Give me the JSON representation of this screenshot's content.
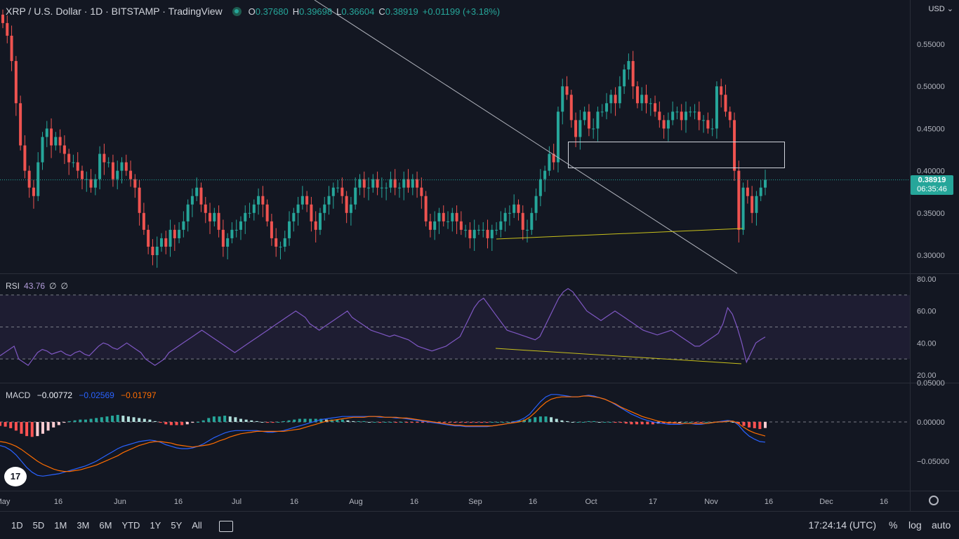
{
  "legend": {
    "symbol": "XRP / U.S. Dollar · 1D · BITSTAMP · TradingView",
    "o_label": "O",
    "o": "0.37680",
    "h_label": "H",
    "h": "0.39698",
    "l_label": "L",
    "l": "0.36604",
    "c_label": "C",
    "c": "0.38919",
    "change": "+0.01199 (+3.18%)"
  },
  "currency": "USD",
  "last_price": "0.38919",
  "countdown": "06:35:46",
  "rsi_legend": {
    "name": "RSI",
    "value": "43.76",
    "extra1": "∅",
    "extra2": "∅"
  },
  "macd_legend": {
    "name": "MACD",
    "v1": "−0.00772",
    "v2": "−0.02569",
    "v3": "−0.01797"
  },
  "ranges": [
    "1D",
    "5D",
    "1M",
    "3M",
    "6M",
    "YTD",
    "1Y",
    "5Y",
    "All"
  ],
  "time": "17:24:14 (UTC)",
  "options": {
    "percent": "%",
    "log": "log",
    "auto": "auto"
  },
  "logo_text": "17",
  "colors": {
    "bg": "#131722",
    "up": "#26a69a",
    "down": "#ef5350",
    "rsi": "#7e57c2",
    "macd": "#2962ff",
    "signal": "#ff6d00",
    "trend": "#c9c11b"
  },
  "chart_data": [
    {
      "type": "candlestick",
      "title": "XRP / U.S. Dollar · 1D · BITSTAMP",
      "y_ticks": [
        "0.55000",
        "0.50000",
        "0.45000",
        "0.40000",
        "0.35000",
        "0.30000"
      ],
      "ylim": [
        0.277,
        0.585
      ],
      "x_ticks": [
        "May",
        "16",
        "Jun",
        "16",
        "Jul",
        "16",
        "Aug",
        "16",
        "Sep",
        "16",
        "Oct",
        "17",
        "Nov",
        "16",
        "Dec",
        "16"
      ],
      "closes": [
        0.575,
        0.56,
        0.53,
        0.48,
        0.43,
        0.4,
        0.38,
        0.37,
        0.41,
        0.44,
        0.45,
        0.43,
        0.44,
        0.43,
        0.42,
        0.41,
        0.41,
        0.4,
        0.39,
        0.39,
        0.38,
        0.39,
        0.42,
        0.41,
        0.41,
        0.39,
        0.4,
        0.41,
        0.4,
        0.39,
        0.38,
        0.35,
        0.33,
        0.31,
        0.3,
        0.31,
        0.32,
        0.31,
        0.33,
        0.32,
        0.33,
        0.34,
        0.36,
        0.37,
        0.38,
        0.36,
        0.35,
        0.34,
        0.35,
        0.33,
        0.31,
        0.32,
        0.33,
        0.33,
        0.34,
        0.35,
        0.35,
        0.36,
        0.37,
        0.36,
        0.34,
        0.32,
        0.31,
        0.31,
        0.32,
        0.34,
        0.35,
        0.36,
        0.37,
        0.36,
        0.34,
        0.33,
        0.35,
        0.36,
        0.37,
        0.38,
        0.38,
        0.37,
        0.35,
        0.36,
        0.38,
        0.39,
        0.38,
        0.38,
        0.39,
        0.38,
        0.38,
        0.38,
        0.39,
        0.38,
        0.38,
        0.39,
        0.38,
        0.39,
        0.38,
        0.37,
        0.34,
        0.33,
        0.34,
        0.35,
        0.34,
        0.34,
        0.35,
        0.34,
        0.33,
        0.33,
        0.32,
        0.33,
        0.33,
        0.33,
        0.32,
        0.33,
        0.33,
        0.34,
        0.35,
        0.35,
        0.36,
        0.35,
        0.33,
        0.33,
        0.35,
        0.37,
        0.39,
        0.4,
        0.42,
        0.41,
        0.47,
        0.5,
        0.49,
        0.46,
        0.44,
        0.46,
        0.47,
        0.45,
        0.45,
        0.47,
        0.47,
        0.48,
        0.49,
        0.48,
        0.5,
        0.52,
        0.53,
        0.5,
        0.48,
        0.49,
        0.48,
        0.48,
        0.47,
        0.46,
        0.45,
        0.46,
        0.47,
        0.47,
        0.46,
        0.47,
        0.47,
        0.47,
        0.46,
        0.46,
        0.45,
        0.45,
        0.5,
        0.49,
        0.47,
        0.46,
        0.4,
        0.33,
        0.38,
        0.37,
        0.35,
        0.37,
        0.38,
        0.3892
      ],
      "current_price": 0.38919
    },
    {
      "type": "line",
      "name": "RSI",
      "y_ticks": [
        "80.00",
        "60.00",
        "40.00",
        "20.00"
      ],
      "ylim": [
        20,
        80
      ],
      "band": [
        30,
        70
      ],
      "midline": 50,
      "values": [
        32,
        34,
        36,
        38,
        30,
        28,
        26,
        30,
        34,
        36,
        35,
        33,
        34,
        35,
        33,
        32,
        34,
        35,
        33,
        32,
        35,
        38,
        40,
        39,
        37,
        36,
        38,
        40,
        38,
        36,
        34,
        30,
        28,
        26,
        28,
        30,
        34,
        36,
        38,
        40,
        42,
        44,
        46,
        48,
        46,
        44,
        42,
        40,
        38,
        36,
        34,
        36,
        38,
        40,
        42,
        44,
        46,
        48,
        50,
        52,
        54,
        56,
        58,
        60,
        58,
        56,
        52,
        50,
        48,
        50,
        52,
        54,
        56,
        58,
        60,
        56,
        54,
        52,
        50,
        48,
        47,
        46,
        45,
        44,
        45,
        44,
        43,
        42,
        40,
        38,
        37,
        36,
        35,
        36,
        37,
        38,
        40,
        42,
        44,
        50,
        56,
        62,
        66,
        68,
        64,
        60,
        56,
        52,
        48,
        47,
        46,
        45,
        44,
        43,
        42,
        44,
        50,
        56,
        62,
        68,
        72,
        74,
        72,
        68,
        64,
        60,
        58,
        56,
        54,
        56,
        58,
        60,
        58,
        56,
        54,
        52,
        50,
        48,
        47,
        46,
        45,
        46,
        47,
        48,
        46,
        44,
        42,
        40,
        38,
        38,
        40,
        42,
        44,
        46,
        52,
        62,
        58,
        50,
        40,
        28,
        34,
        40,
        42,
        43.76
      ],
      "current": 43.76
    },
    {
      "type": "bar+line",
      "name": "MACD",
      "y_ticks": [
        "0.05000",
        "0.00000",
        "−0.05000"
      ],
      "ylim": [
        -0.085,
        0.05
      ],
      "macd": [
        -0.03,
        -0.032,
        -0.036,
        -0.042,
        -0.05,
        -0.058,
        -0.064,
        -0.068,
        -0.069,
        -0.068,
        -0.067,
        -0.066,
        -0.064,
        -0.062,
        -0.06,
        -0.058,
        -0.056,
        -0.053,
        -0.05,
        -0.046,
        -0.042,
        -0.038,
        -0.034,
        -0.031,
        -0.029,
        -0.027,
        -0.025,
        -0.024,
        -0.023,
        -0.024,
        -0.026,
        -0.029,
        -0.031,
        -0.033,
        -0.034,
        -0.034,
        -0.033,
        -0.031,
        -0.028,
        -0.024,
        -0.02,
        -0.017,
        -0.014,
        -0.012,
        -0.011,
        -0.011,
        -0.011,
        -0.011,
        -0.011,
        -0.012,
        -0.013,
        -0.013,
        -0.012,
        -0.011,
        -0.009,
        -0.007,
        -0.005,
        -0.003,
        -0.001,
        0.001,
        0.003,
        0.004,
        0.005,
        0.006,
        0.007,
        0.007,
        0.007,
        0.007,
        0.007,
        0.007,
        0.007,
        0.006,
        0.006,
        0.006,
        0.005,
        0.005,
        0.004,
        0.003,
        0.002,
        0.001,
        0.0,
        -0.001,
        -0.002,
        -0.003,
        -0.004,
        -0.005,
        -0.005,
        -0.006,
        -0.006,
        -0.006,
        -0.006,
        -0.006,
        -0.005,
        -0.004,
        -0.003,
        -0.002,
        0.0,
        0.002,
        0.005,
        0.01,
        0.018,
        0.026,
        0.032,
        0.035,
        0.035,
        0.034,
        0.033,
        0.032,
        0.032,
        0.033,
        0.034,
        0.033,
        0.031,
        0.029,
        0.026,
        0.022,
        0.018,
        0.014,
        0.01,
        0.007,
        0.004,
        0.002,
        0.0,
        -0.001,
        -0.002,
        -0.003,
        -0.003,
        -0.003,
        -0.002,
        -0.002,
        -0.003,
        -0.003,
        -0.002,
        -0.001,
        0.0,
        0.001,
        0.002,
        0.001,
        -0.004,
        -0.012,
        -0.018,
        -0.022,
        -0.025,
        -0.02569
      ],
      "signal": [
        -0.025,
        -0.026,
        -0.028,
        -0.031,
        -0.035,
        -0.04,
        -0.045,
        -0.05,
        -0.054,
        -0.057,
        -0.06,
        -0.062,
        -0.063,
        -0.063,
        -0.062,
        -0.061,
        -0.059,
        -0.057,
        -0.055,
        -0.052,
        -0.049,
        -0.046,
        -0.043,
        -0.039,
        -0.036,
        -0.033,
        -0.03,
        -0.028,
        -0.026,
        -0.025,
        -0.025,
        -0.026,
        -0.027,
        -0.029,
        -0.03,
        -0.031,
        -0.032,
        -0.031,
        -0.03,
        -0.029,
        -0.027,
        -0.024,
        -0.022,
        -0.019,
        -0.017,
        -0.015,
        -0.014,
        -0.013,
        -0.012,
        -0.012,
        -0.012,
        -0.012,
        -0.012,
        -0.012,
        -0.011,
        -0.01,
        -0.009,
        -0.007,
        -0.005,
        -0.003,
        -0.001,
        0.001,
        0.002,
        0.003,
        0.004,
        0.005,
        0.006,
        0.006,
        0.006,
        0.007,
        0.007,
        0.007,
        0.006,
        0.006,
        0.006,
        0.005,
        0.005,
        0.004,
        0.003,
        0.002,
        0.001,
        0.0,
        -0.001,
        -0.002,
        -0.003,
        -0.004,
        -0.004,
        -0.005,
        -0.005,
        -0.005,
        -0.005,
        -0.005,
        -0.005,
        -0.004,
        -0.003,
        -0.002,
        -0.001,
        0.0,
        0.002,
        0.006,
        0.012,
        0.019,
        0.025,
        0.029,
        0.031,
        0.032,
        0.032,
        0.032,
        0.032,
        0.033,
        0.033,
        0.032,
        0.031,
        0.029,
        0.026,
        0.023,
        0.019,
        0.016,
        0.013,
        0.01,
        0.007,
        0.005,
        0.003,
        0.001,
        0.0,
        -0.001,
        -0.001,
        -0.002,
        -0.002,
        -0.002,
        -0.002,
        -0.002,
        -0.002,
        -0.001,
        0.0,
        0.0,
        0.001,
        0.001,
        -0.002,
        -0.007,
        -0.011,
        -0.014,
        -0.016,
        -0.01797
      ]
    }
  ]
}
